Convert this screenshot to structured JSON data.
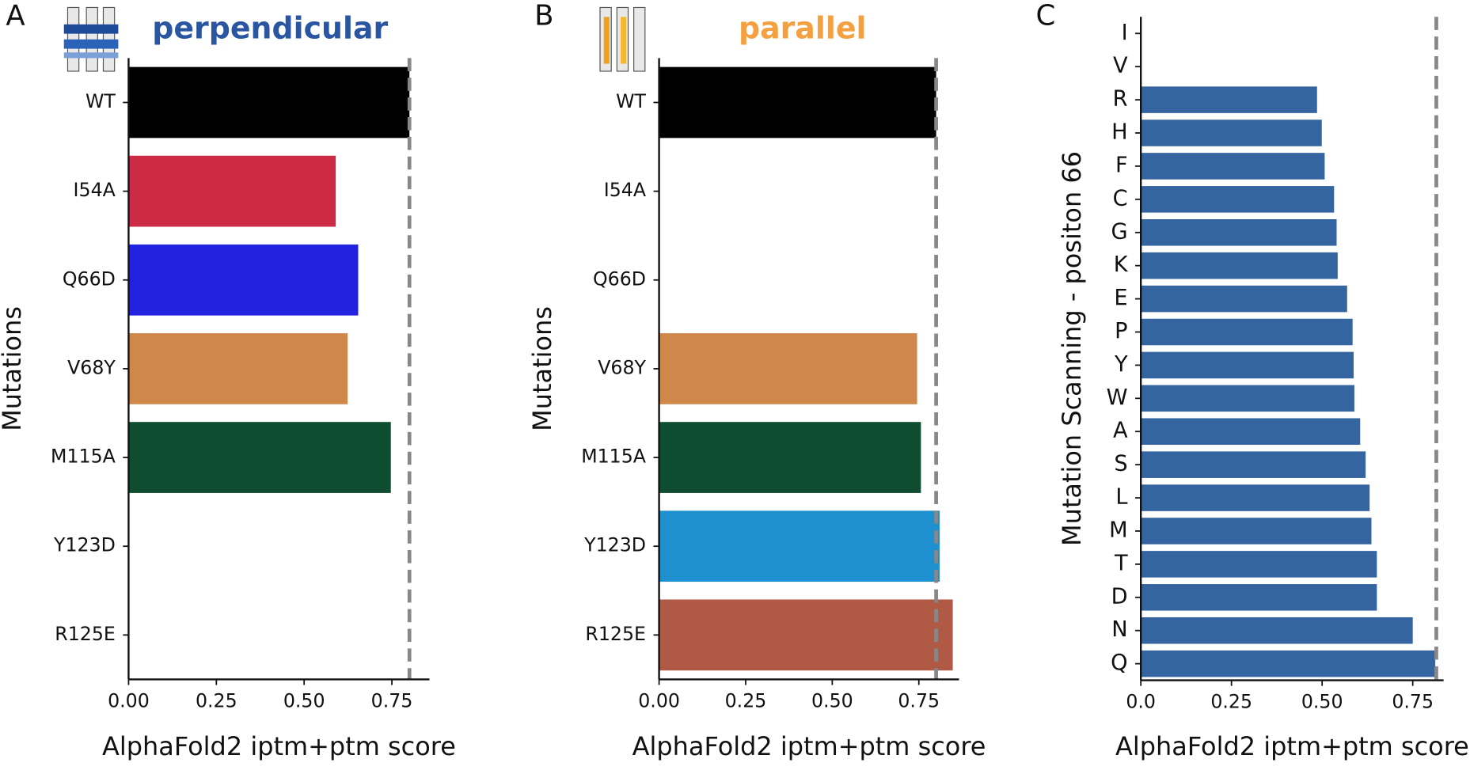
{
  "chart_data": [
    {
      "type": "bar",
      "orientation": "horizontal",
      "panel": "A",
      "title": "perpendicular",
      "title_color": "#2a55a0",
      "xlabel": "AlphaFold2 iptm+ptm score",
      "ylabel": "Mutations",
      "categories": [
        "WT",
        "I54A",
        "Q66D",
        "V68Y",
        "M115A",
        "Y123D",
        "R125E"
      ],
      "values": [
        0.8,
        0.59,
        0.654,
        0.624,
        0.747,
        null,
        null
      ],
      "colors": [
        "#000000",
        "#cc2a45",
        "#2222e0",
        "#cf884a",
        "#0e4d30",
        null,
        null
      ],
      "xlim": [
        0,
        0.857
      ],
      "xticks": [
        {
          "value": 0,
          "label": "0.00"
        },
        0.25,
        {
          "value": 0.5,
          "label": "0.50"
        },
        0.75
      ],
      "reference_line": 0.8
    },
    {
      "type": "bar",
      "orientation": "horizontal",
      "panel": "B",
      "title": "parallel",
      "title_color": "#f5a040",
      "xlabel": "AlphaFold2 iptm+ptm score",
      "ylabel": "Mutations",
      "categories": [
        "WT",
        "I54A",
        "Q66D",
        "V68Y",
        "M115A",
        "Y123D",
        "R125E"
      ],
      "values": [
        0.8,
        null,
        null,
        0.745,
        0.756,
        0.81,
        0.848
      ],
      "colors": [
        "#000000",
        null,
        null,
        "#cf884a",
        "#0e4d30",
        "#1e90d0",
        "#b05a46"
      ],
      "xlim": [
        0,
        0.866
      ],
      "xticks": [
        {
          "value": 0,
          "label": "0.00"
        },
        0.25,
        {
          "value": 0.5,
          "label": "0.50"
        },
        0.75
      ],
      "reference_line": 0.8
    },
    {
      "type": "bar",
      "orientation": "horizontal",
      "panel": "C",
      "xlabel": "AlphaFold2 iptm+ptm score",
      "ylabel": "Mutation Scanning - positon 66",
      "categories": [
        "I",
        "V",
        "R",
        "H",
        "F",
        "C",
        "G",
        "K",
        "E",
        "P",
        "Y",
        "W",
        "A",
        "S",
        "L",
        "M",
        "T",
        "D",
        "N",
        "Q"
      ],
      "values": [
        null,
        null,
        0.486,
        0.499,
        0.507,
        0.533,
        0.54,
        0.543,
        0.569,
        0.584,
        0.587,
        0.589,
        0.605,
        0.62,
        0.631,
        0.636,
        0.651,
        0.651,
        0.75,
        0.812
      ],
      "color": "#3465a0",
      "xlim": [
        0,
        0.835
      ],
      "xticks": [
        {
          "value": 0,
          "label": "0.0"
        },
        0.25,
        {
          "value": 0.5,
          "label": "0.50"
        },
        0.75
      ],
      "reference_line": 0.815
    }
  ]
}
